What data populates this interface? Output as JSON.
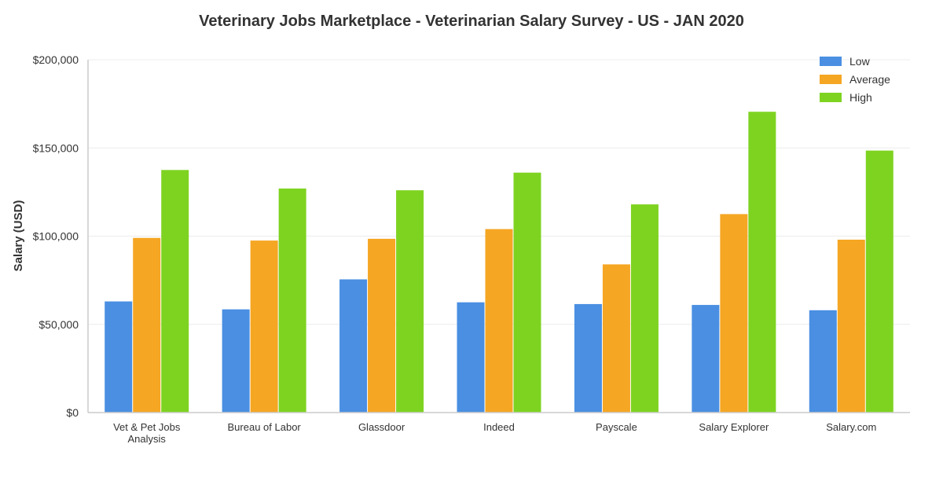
{
  "chart_data": {
    "type": "bar",
    "title": "Veterinary Jobs Marketplace - Veterinarian Salary Survey - US - JAN 2020",
    "xlabel": "",
    "ylabel": "Salary (USD)",
    "ylim": [
      0,
      200000
    ],
    "yticks": [
      {
        "value": 0,
        "label": "$0"
      },
      {
        "value": 50000,
        "label": "$50,000"
      },
      {
        "value": 100000,
        "label": "$100,000"
      },
      {
        "value": 150000,
        "label": "$150,000"
      },
      {
        "value": 200000,
        "label": "$200,000"
      }
    ],
    "categories": [
      [
        "Vet & Pet Jobs",
        "Analysis"
      ],
      [
        "Bureau of Labor"
      ],
      [
        "Glassdoor"
      ],
      [
        "Indeed"
      ],
      [
        "Payscale"
      ],
      [
        "Salary Explorer"
      ],
      [
        "Salary.com"
      ]
    ],
    "series": [
      {
        "name": "Low",
        "color": "#4a8fe2",
        "values": [
          63000,
          58500,
          75500,
          62500,
          61500,
          61000,
          58000
        ]
      },
      {
        "name": "Average",
        "color": "#f5a623",
        "values": [
          99000,
          97500,
          98500,
          104000,
          84000,
          112500,
          98000
        ]
      },
      {
        "name": "High",
        "color": "#7ed321",
        "values": [
          137500,
          127000,
          126000,
          136000,
          118000,
          170500,
          148500
        ]
      }
    ],
    "grid": true,
    "legend_position": "top-right"
  }
}
